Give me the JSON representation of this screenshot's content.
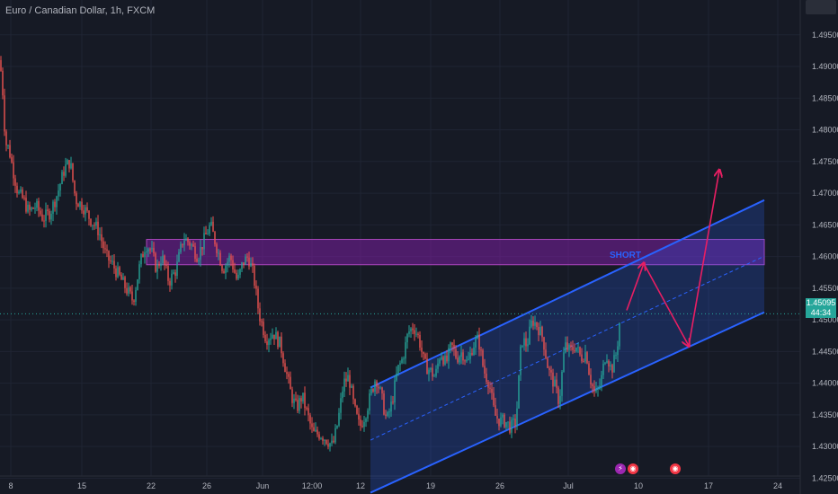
{
  "symbol": {
    "title": "Euro / Canadian Dollar, 1h, FXCM"
  },
  "price_tag": {
    "value": "1.45095",
    "countdown": "44:34"
  },
  "colors": {
    "background": "#161a25",
    "up_candle": "#26a69a",
    "down_candle": "#ef5350",
    "channel": "#2962ff",
    "zone": "#7b1fa2",
    "arrow": "#e91e63",
    "grid": "#1f2433"
  },
  "chart_data": {
    "type": "candlestick",
    "title": "Euro / Canadian Dollar, 1h, FXCM",
    "x_ticks": [
      "8",
      "15",
      "22",
      "26",
      "Jun",
      "12:00",
      "12",
      "19",
      "26",
      "Jul",
      "10",
      "17",
      "24"
    ],
    "y_ticks": [
      "1.42500",
      "1.43000",
      "1.43500",
      "1.44000",
      "1.44500",
      "1.45000",
      "1.45500",
      "1.46000",
      "1.46500",
      "1.47000",
      "1.47500",
      "1.48000",
      "1.48500",
      "1.49000",
      "1.49500"
    ],
    "ylim": [
      1.4225,
      1.5005
    ],
    "last_price": 1.45095,
    "price_path": [
      [
        0,
        1.491
      ],
      [
        3,
        1.486
      ],
      [
        6,
        1.478
      ],
      [
        10,
        1.477
      ],
      [
        14,
        1.474
      ],
      [
        20,
        1.47
      ],
      [
        26,
        1.469
      ],
      [
        32,
        1.467
      ],
      [
        40,
        1.468
      ],
      [
        48,
        1.466
      ],
      [
        56,
        1.467
      ],
      [
        64,
        1.47
      ],
      [
        72,
        1.474
      ],
      [
        78,
        1.475
      ],
      [
        84,
        1.469
      ],
      [
        92,
        1.468
      ],
      [
        100,
        1.466
      ],
      [
        110,
        1.464
      ],
      [
        118,
        1.46
      ],
      [
        124,
        1.459
      ],
      [
        132,
        1.457
      ],
      [
        140,
        1.455
      ],
      [
        148,
        1.453
      ],
      [
        156,
        1.459
      ],
      [
        162,
        1.462
      ],
      [
        168,
        1.461
      ],
      [
        174,
        1.458
      ],
      [
        180,
        1.46
      ],
      [
        188,
        1.456
      ],
      [
        196,
        1.458
      ],
      [
        204,
        1.463
      ],
      [
        212,
        1.462
      ],
      [
        220,
        1.46
      ],
      [
        228,
        1.463
      ],
      [
        234,
        1.465
      ],
      [
        240,
        1.462
      ],
      [
        248,
        1.458
      ],
      [
        256,
        1.46
      ],
      [
        264,
        1.456
      ],
      [
        270,
        1.459
      ],
      [
        276,
        1.46
      ],
      [
        282,
        1.457
      ],
      [
        288,
        1.451
      ],
      [
        296,
        1.447
      ],
      [
        304,
        1.448
      ],
      [
        312,
        1.446
      ],
      [
        318,
        1.442
      ],
      [
        324,
        1.438
      ],
      [
        330,
        1.436
      ],
      [
        336,
        1.438
      ],
      [
        342,
        1.435
      ],
      [
        348,
        1.432
      ],
      [
        356,
        1.432
      ],
      [
        364,
        1.431
      ],
      [
        370,
        1.43
      ],
      [
        376,
        1.434
      ],
      [
        382,
        1.44
      ],
      [
        388,
        1.441
      ],
      [
        394,
        1.436
      ],
      [
        400,
        1.433
      ],
      [
        406,
        1.435
      ],
      [
        412,
        1.438
      ],
      [
        418,
        1.441
      ],
      [
        424,
        1.438
      ],
      [
        430,
        1.434
      ],
      [
        436,
        1.437
      ],
      [
        442,
        1.442
      ],
      [
        448,
        1.444
      ],
      [
        454,
        1.448
      ],
      [
        460,
        1.449
      ],
      [
        466,
        1.447
      ],
      [
        472,
        1.443
      ],
      [
        478,
        1.442
      ],
      [
        484,
        1.441
      ],
      [
        490,
        1.445
      ],
      [
        496,
        1.443
      ],
      [
        502,
        1.446
      ],
      [
        508,
        1.444
      ],
      [
        514,
        1.445
      ],
      [
        520,
        1.443
      ],
      [
        526,
        1.446
      ],
      [
        532,
        1.447
      ],
      [
        538,
        1.442
      ],
      [
        544,
        1.44
      ],
      [
        550,
        1.435
      ],
      [
        556,
        1.434
      ],
      [
        562,
        1.434
      ],
      [
        568,
        1.433
      ],
      [
        574,
        1.434
      ],
      [
        580,
        1.447
      ],
      [
        586,
        1.446
      ],
      [
        592,
        1.45
      ],
      [
        598,
        1.449
      ],
      [
        604,
        1.447
      ],
      [
        610,
        1.442
      ],
      [
        616,
        1.44
      ],
      [
        622,
        1.437
      ],
      [
        628,
        1.446
      ],
      [
        634,
        1.445
      ],
      [
        640,
        1.446
      ],
      [
        646,
        1.444
      ],
      [
        652,
        1.445
      ],
      [
        656,
        1.441
      ],
      [
        662,
        1.438
      ],
      [
        668,
        1.44
      ],
      [
        674,
        1.445
      ],
      [
        680,
        1.442
      ],
      [
        686,
        1.445
      ],
      [
        690,
        1.451
      ]
    ],
    "x_index_range": [
      0,
      850
    ],
    "annotations": {
      "zone_label": "SHORT",
      "resistance_zone": [
        1.4587,
        1.4627
      ],
      "channel_upper": [
        [
          412,
          1.4393
        ],
        [
          850,
          1.4689
        ]
      ],
      "channel_lower": [
        [
          412,
          1.4227
        ],
        [
          850,
          1.4512
        ]
      ],
      "arrow_path": [
        [
          697,
          1.4515
        ],
        [
          716,
          1.4589
        ],
        [
          766,
          1.4459
        ],
        [
          800,
          1.4736
        ]
      ]
    }
  }
}
